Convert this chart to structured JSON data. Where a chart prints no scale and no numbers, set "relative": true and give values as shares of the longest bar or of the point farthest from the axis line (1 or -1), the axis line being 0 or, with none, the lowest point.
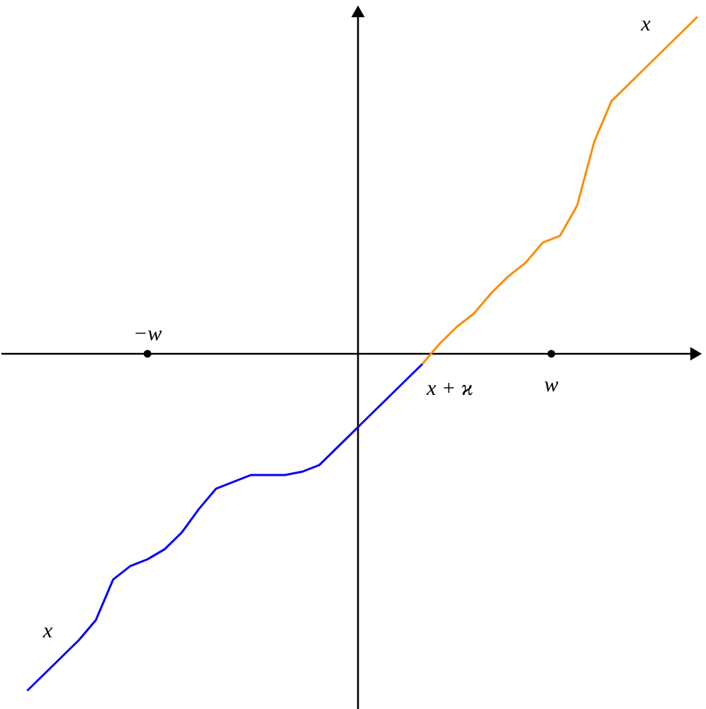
{
  "chart_data": {
    "type": "line",
    "relative": true,
    "categories": [
      null,
      null,
      null,
      null,
      null,
      null,
      null,
      null,
      null,
      null,
      null,
      null,
      null,
      null,
      null,
      null,
      null,
      null,
      null,
      null,
      null,
      null,
      null,
      null,
      null,
      null,
      null,
      null,
      null,
      null,
      null,
      null,
      null,
      null,
      null,
      null,
      null,
      null,
      null,
      null
    ],
    "series": [
      {
        "color": "#0000ff",
        "values": [
          -1,
          -0.95,
          -0.9,
          -0.85,
          -0.79,
          -0.67,
          -0.63,
          -0.61,
          -0.58,
          -0.53,
          -0.46,
          -0.4,
          -0.38,
          -0.36,
          -0.36,
          -0.36,
          -0.35,
          -0.33,
          -0.28,
          -0.23,
          -0.18,
          -0.13,
          -0.08,
          -0.03,
          null,
          null,
          null,
          null,
          null,
          null,
          null,
          null,
          null,
          null,
          null,
          null,
          null,
          null,
          null,
          null
        ]
      },
      {
        "color": "#ff8c00",
        "values": [
          null,
          null,
          null,
          null,
          null,
          null,
          null,
          null,
          null,
          null,
          null,
          null,
          null,
          null,
          null,
          null,
          null,
          null,
          null,
          null,
          null,
          null,
          null,
          -0.03,
          0.03,
          0.08,
          0.12,
          0.18,
          0.23,
          0.27,
          0.33,
          0.35,
          0.44,
          0.63,
          0.75,
          0.8,
          0.85,
          0.9,
          0.95,
          1
        ]
      }
    ],
    "annotations": [
      "x",
      "x",
      "−w",
      "w",
      "x + ϰ"
    ]
  }
}
